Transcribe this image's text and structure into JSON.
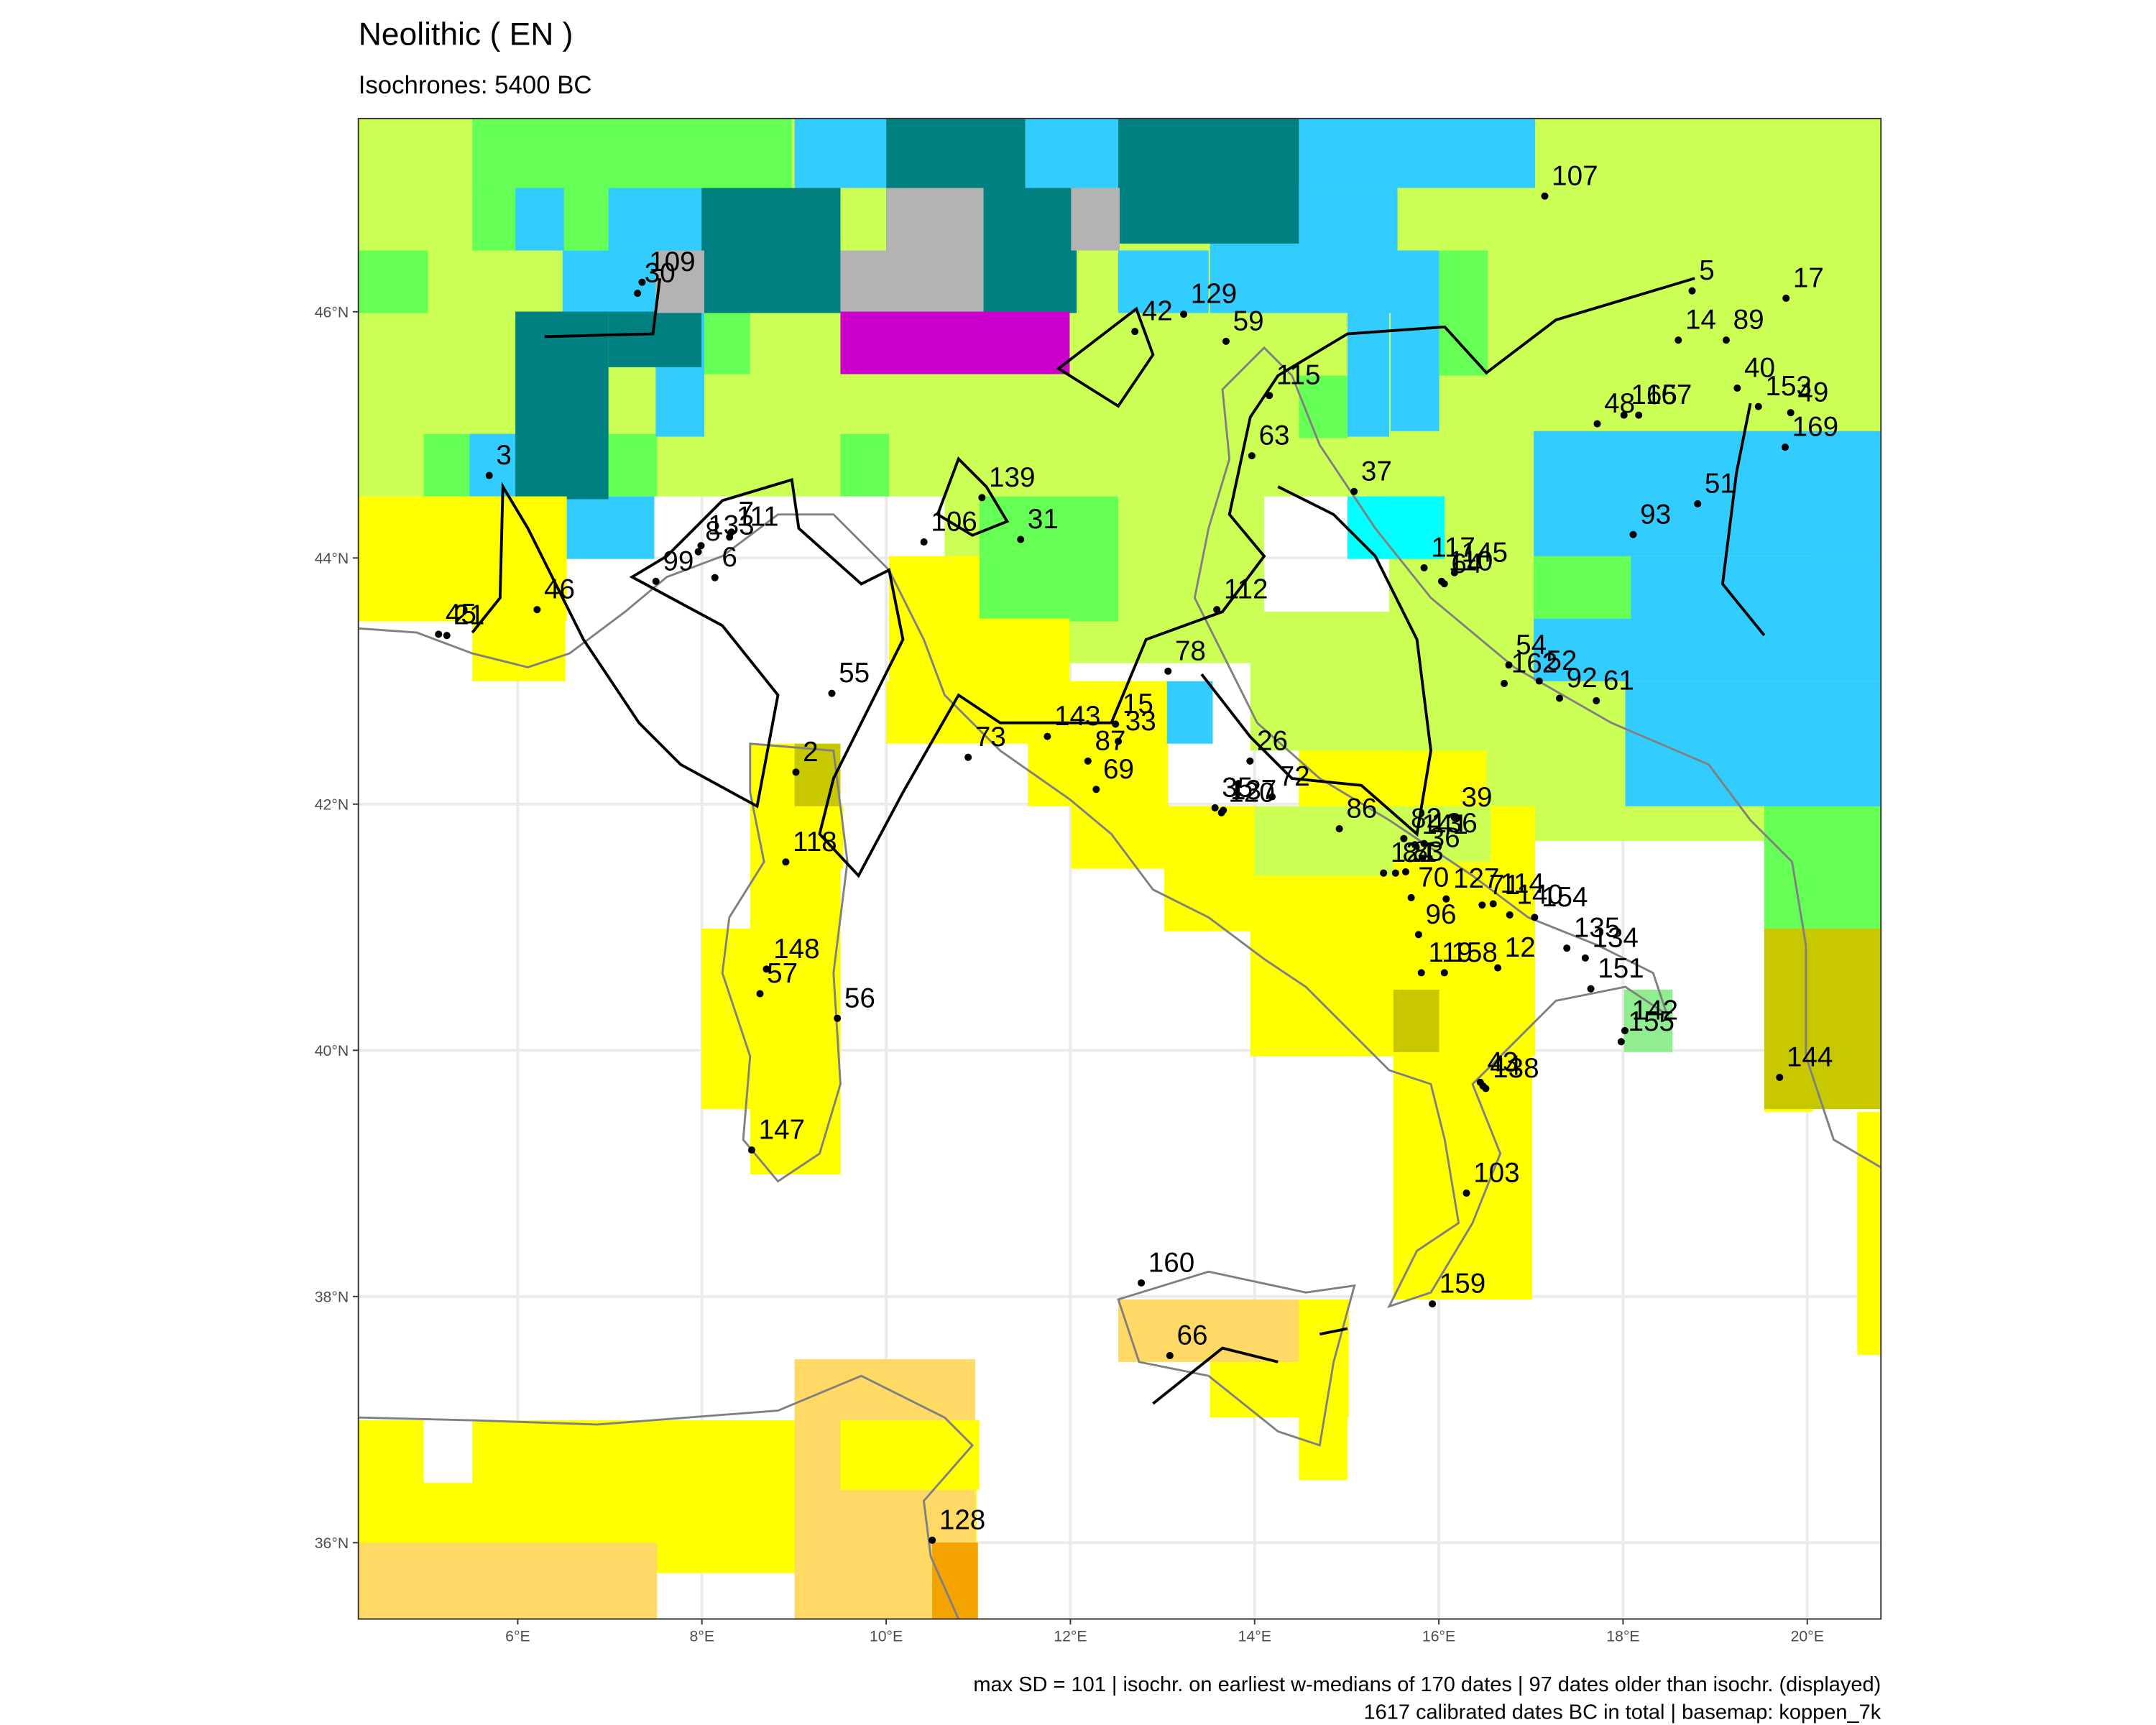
{
  "map": {
    "title": "Neolithic ( EN )",
    "subtitle": "Isochrones: 5400 BC",
    "xlim": [
      4.27,
      20.8
    ],
    "ylim": [
      35.38,
      47.57
    ],
    "xticks": [
      {
        "value": 6,
        "label": "6°E"
      },
      {
        "value": 8,
        "label": "8°E"
      },
      {
        "value": 10,
        "label": "10°E"
      },
      {
        "value": 12,
        "label": "12°E"
      },
      {
        "value": 14,
        "label": "14°E"
      },
      {
        "value": 16,
        "label": "16°E"
      },
      {
        "value": 18,
        "label": "18°E"
      },
      {
        "value": 20,
        "label": "20°E"
      }
    ],
    "yticks": [
      {
        "value": 36,
        "label": "36°N"
      },
      {
        "value": 38,
        "label": "38°N"
      },
      {
        "value": 40,
        "label": "40°N"
      },
      {
        "value": 42,
        "label": "42°N"
      },
      {
        "value": 44,
        "label": "44°N"
      },
      {
        "value": 46,
        "label": "46°N"
      }
    ],
    "sites": [
      {
        "label": "107",
        "lon": 17.15,
        "lat": 46.94
      },
      {
        "label": "5",
        "lon": 18.75,
        "lat": 46.17
      },
      {
        "label": "17",
        "lon": 19.77,
        "lat": 46.11
      },
      {
        "label": "14",
        "lon": 18.6,
        "lat": 45.77
      },
      {
        "label": "89",
        "lon": 19.12,
        "lat": 45.77
      },
      {
        "label": "40",
        "lon": 19.24,
        "lat": 45.38
      },
      {
        "label": "165",
        "lon": 18.01,
        "lat": 45.16
      },
      {
        "label": "167",
        "lon": 18.17,
        "lat": 45.16
      },
      {
        "label": "153",
        "lon": 19.47,
        "lat": 45.23
      },
      {
        "label": "49",
        "lon": 19.82,
        "lat": 45.18
      },
      {
        "label": "169",
        "lon": 19.76,
        "lat": 44.9
      },
      {
        "label": "48",
        "lon": 17.72,
        "lat": 45.09
      },
      {
        "label": "93",
        "lon": 18.11,
        "lat": 44.19
      },
      {
        "label": "51",
        "lon": 18.81,
        "lat": 44.44
      },
      {
        "label": "129",
        "lon": 13.23,
        "lat": 45.98
      },
      {
        "label": "42",
        "lon": 12.7,
        "lat": 45.84
      },
      {
        "label": "59",
        "lon": 13.69,
        "lat": 45.76
      },
      {
        "label": "115",
        "lon": 14.16,
        "lat": 45.32
      },
      {
        "label": "63",
        "lon": 13.97,
        "lat": 44.83
      },
      {
        "label": "37",
        "lon": 15.08,
        "lat": 44.54
      },
      {
        "label": "117",
        "lon": 15.84,
        "lat": 43.92
      },
      {
        "label": "145",
        "lon": 16.17,
        "lat": 43.88
      },
      {
        "label": "110",
        "lon": 16.03,
        "lat": 43.81
      },
      {
        "label": "64",
        "lon": 16.06,
        "lat": 43.79
      },
      {
        "label": "54",
        "lon": 16.76,
        "lat": 43.13
      },
      {
        "label": "52",
        "lon": 17.09,
        "lat": 43.0
      },
      {
        "label": "162",
        "lon": 16.71,
        "lat": 42.98
      },
      {
        "label": "92",
        "lon": 17.31,
        "lat": 42.86
      },
      {
        "label": "61",
        "lon": 17.71,
        "lat": 42.84
      },
      {
        "label": "109",
        "lon": 7.35,
        "lat": 46.24
      },
      {
        "label": "30",
        "lon": 7.3,
        "lat": 46.15
      },
      {
        "label": "3",
        "lon": 5.69,
        "lat": 44.67
      },
      {
        "label": "133",
        "lon": 7.99,
        "lat": 44.1
      },
      {
        "label": "7",
        "lon": 8.32,
        "lat": 44.21
      },
      {
        "label": "111",
        "lon": 8.3,
        "lat": 44.17
      },
      {
        "label": "8",
        "lon": 7.96,
        "lat": 44.05
      },
      {
        "label": "6",
        "lon": 8.14,
        "lat": 43.84
      },
      {
        "label": "99",
        "lon": 7.5,
        "lat": 43.81
      },
      {
        "label": "45",
        "lon": 5.14,
        "lat": 43.38
      },
      {
        "label": "21",
        "lon": 5.23,
        "lat": 43.37
      },
      {
        "label": "46",
        "lon": 6.21,
        "lat": 43.58
      },
      {
        "label": "139",
        "lon": 11.04,
        "lat": 44.49
      },
      {
        "label": "106",
        "lon": 10.41,
        "lat": 44.13
      },
      {
        "label": "31",
        "lon": 11.46,
        "lat": 44.15
      },
      {
        "label": "112",
        "lon": 13.59,
        "lat": 43.58
      },
      {
        "label": "78",
        "lon": 13.06,
        "lat": 43.08
      },
      {
        "label": "15",
        "lon": 12.49,
        "lat": 42.65
      },
      {
        "label": "143",
        "lon": 11.75,
        "lat": 42.55
      },
      {
        "label": "33",
        "lon": 12.52,
        "lat": 42.51
      },
      {
        "label": "87",
        "lon": 12.19,
        "lat": 42.35
      },
      {
        "label": "69",
        "lon": 12.28,
        "lat": 42.12
      },
      {
        "label": "73",
        "lon": 10.89,
        "lat": 42.38
      },
      {
        "label": "55",
        "lon": 9.41,
        "lat": 42.9
      },
      {
        "label": "2",
        "lon": 9.02,
        "lat": 42.26
      },
      {
        "label": "118",
        "lon": 8.91,
        "lat": 41.53
      },
      {
        "label": "148",
        "lon": 8.7,
        "lat": 40.66
      },
      {
        "label": "57",
        "lon": 8.63,
        "lat": 40.46
      },
      {
        "label": "56",
        "lon": 9.47,
        "lat": 40.26
      },
      {
        "label": "147",
        "lon": 8.54,
        "lat": 39.19
      },
      {
        "label": "26",
        "lon": 13.95,
        "lat": 42.35
      },
      {
        "label": "72",
        "lon": 14.19,
        "lat": 42.06
      },
      {
        "label": "35",
        "lon": 13.57,
        "lat": 41.97
      },
      {
        "label": "137",
        "lon": 13.66,
        "lat": 41.95
      },
      {
        "label": "120",
        "lon": 13.64,
        "lat": 41.93
      },
      {
        "label": "86",
        "lon": 14.92,
        "lat": 41.8
      },
      {
        "label": "82",
        "lon": 15.62,
        "lat": 41.72
      },
      {
        "label": "141",
        "lon": 15.74,
        "lat": 41.67
      },
      {
        "label": "136",
        "lon": 15.84,
        "lat": 41.68
      },
      {
        "label": "39",
        "lon": 16.17,
        "lat": 41.89
      },
      {
        "label": "36",
        "lon": 15.82,
        "lat": 41.56
      },
      {
        "label": "121",
        "lon": 15.4,
        "lat": 41.44
      },
      {
        "label": "84",
        "lon": 15.53,
        "lat": 41.44
      },
      {
        "label": "83",
        "lon": 15.64,
        "lat": 41.45
      },
      {
        "label": "127",
        "lon": 16.08,
        "lat": 41.23
      },
      {
        "label": "114",
        "lon": 16.59,
        "lat": 41.19
      },
      {
        "label": "140",
        "lon": 16.77,
        "lat": 41.1
      },
      {
        "label": "154",
        "lon": 17.04,
        "lat": 41.08
      },
      {
        "label": "134",
        "lon": 17.59,
        "lat": 40.75
      },
      {
        "label": "71",
        "lon": 16.47,
        "lat": 41.18
      },
      {
        "label": "70",
        "lon": 15.7,
        "lat": 41.24
      },
      {
        "label": "96",
        "lon": 15.78,
        "lat": 40.94
      },
      {
        "label": "12",
        "lon": 16.64,
        "lat": 40.67
      },
      {
        "label": "135",
        "lon": 17.39,
        "lat": 40.83
      },
      {
        "label": "158",
        "lon": 16.06,
        "lat": 40.63
      },
      {
        "label": "119",
        "lon": 15.81,
        "lat": 40.63
      },
      {
        "label": "151",
        "lon": 17.65,
        "lat": 40.5
      },
      {
        "label": "142",
        "lon": 18.02,
        "lat": 40.16
      },
      {
        "label": "155",
        "lon": 17.98,
        "lat": 40.07
      },
      {
        "label": "43",
        "lon": 16.45,
        "lat": 39.74
      },
      {
        "label": "44",
        "lon": 16.48,
        "lat": 39.71
      },
      {
        "label": "138",
        "lon": 16.51,
        "lat": 39.69
      },
      {
        "label": "103",
        "lon": 16.3,
        "lat": 38.84
      },
      {
        "label": "160",
        "lon": 12.77,
        "lat": 38.11
      },
      {
        "label": "66",
        "lon": 13.08,
        "lat": 37.52
      },
      {
        "label": "159",
        "lon": 15.93,
        "lat": 37.94
      },
      {
        "label": "128",
        "lon": 10.5,
        "lat": 36.02
      },
      {
        "label": "144",
        "lon": 19.7,
        "lat": 39.78
      }
    ],
    "caption": [
      "max SD = 101 | isochr. on earliest w-medians of 170 dates | 97 dates older than isochr. (displayed)",
      "1617 calibrated dates BC in total | basemap: koppen_7k"
    ]
  }
}
